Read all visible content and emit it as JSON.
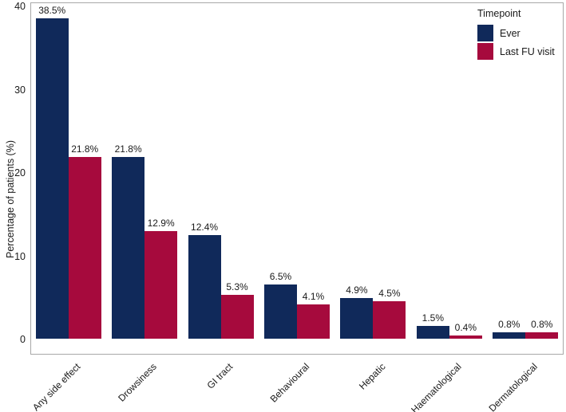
{
  "ylabel": "Percentage of patients (%)",
  "legend": {
    "title": "Timepoint",
    "items": [
      {
        "label": "Ever",
        "color": "#10295a"
      },
      {
        "label": "Last FU visit",
        "color": "#a60a3d"
      }
    ]
  },
  "chart_data": {
    "type": "bar",
    "categories": [
      "Any side effect",
      "Drowsiness",
      "GI tract",
      "Behavioural",
      "Hepatic",
      "Haematological",
      "Dermatological"
    ],
    "series": [
      {
        "name": "Ever",
        "color": "#10295a",
        "values": [
          38.5,
          21.8,
          12.4,
          6.5,
          4.9,
          1.5,
          0.8
        ],
        "labels": [
          "38.5%",
          "21.8%",
          "12.4%",
          "6.5%",
          "4.9%",
          "1.5%",
          "0.8%"
        ]
      },
      {
        "name": "Last FU visit",
        "color": "#a60a3d",
        "values": [
          21.8,
          12.9,
          5.3,
          4.1,
          4.5,
          0.4,
          0.8
        ],
        "labels": [
          "21.8%",
          "12.9%",
          "5.3%",
          "4.1%",
          "4.5%",
          "0.4%",
          "0.8%"
        ]
      }
    ],
    "title": "",
    "xlabel": "",
    "ylabel": "Percentage of patients (%)",
    "ylim": [
      0,
      40
    ],
    "yticks": [
      0,
      10,
      20,
      30,
      40
    ],
    "grid": false,
    "legend_title": "Timepoint",
    "legend_position": "inside-top-right",
    "bar_value_labels": true
  }
}
